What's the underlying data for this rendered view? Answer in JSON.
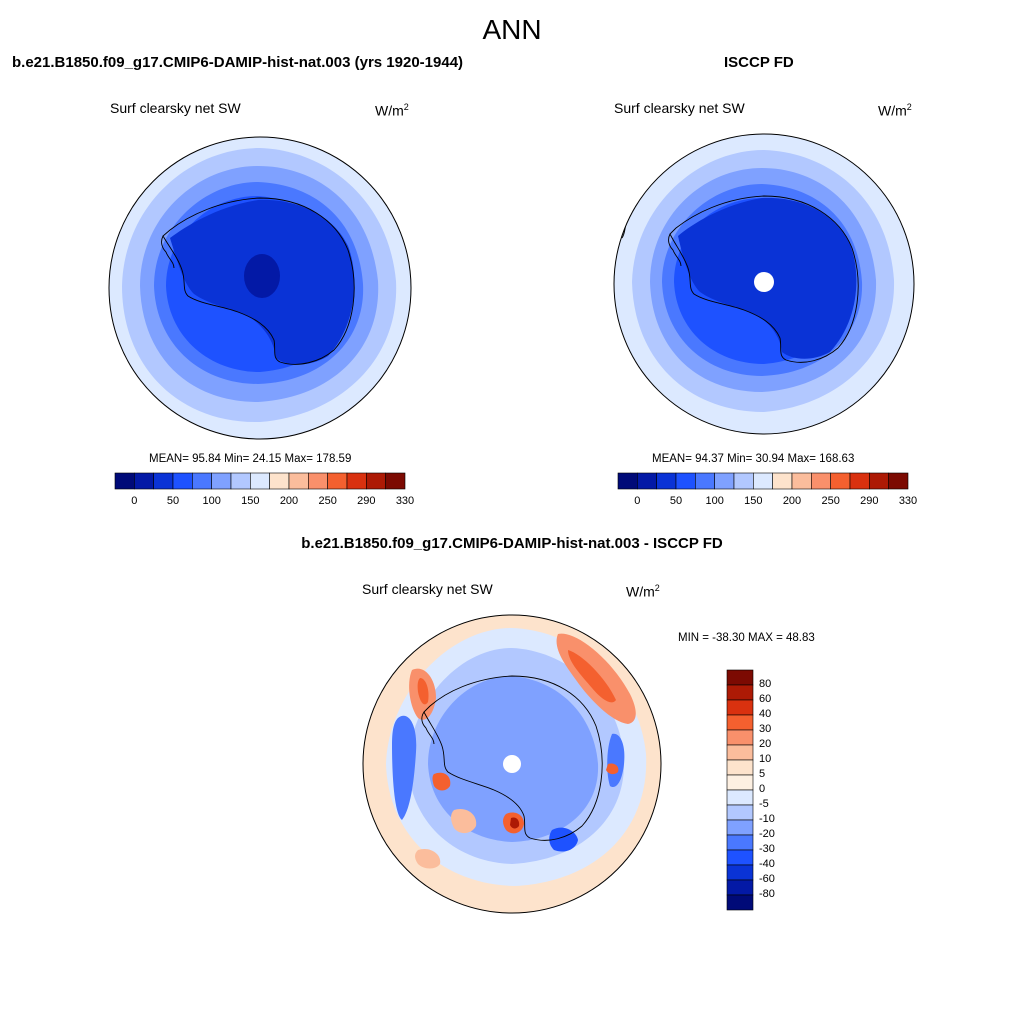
{
  "figure": {
    "title": "ANN"
  },
  "colors": {
    "cb_sequential": [
      "#000a78",
      "#0319a6",
      "#0a33d6",
      "#1e52ff",
      "#4a78ff",
      "#7fa1ff",
      "#b2c8ff",
      "#dce9ff",
      "#fde3cc",
      "#fbbd9c",
      "#f9906b",
      "#f4602f",
      "#d9310f",
      "#ad1a05",
      "#7c0a02"
    ],
    "cb_diff": [
      "#000a78",
      "#0319a6",
      "#0a33d6",
      "#1e52ff",
      "#4a78ff",
      "#7fa1ff",
      "#b2c8ff",
      "#dce9ff",
      "#fdf0e2",
      "#fde3cc",
      "#fbbd9c",
      "#f9906b",
      "#f4602f",
      "#d9310f",
      "#ad1a05",
      "#7c0a02"
    ]
  },
  "chart_data": [
    {
      "type": "heatmap",
      "projection": "south-polar-stereographic",
      "panel_title": "b.e21.B1850.f09_g17.CMIP6-DAMIP-hist-nat.003 (yrs 1920-1944)",
      "variable": "Surf clearsky net SW",
      "units_base": "W/m",
      "units_exp": "2",
      "stats_text": "MEAN=  95.84  Min=  24.15  Max= 178.59",
      "mean": 95.84,
      "min": 24.15,
      "max": 178.59,
      "colorbar": {
        "orientation": "horizontal",
        "levels": [
          0,
          50,
          100,
          150,
          200,
          250,
          290,
          330
        ],
        "labels": [
          "0",
          "50",
          "100",
          "150",
          "200",
          "250",
          "290",
          "330"
        ]
      }
    },
    {
      "type": "heatmap",
      "projection": "south-polar-stereographic",
      "panel_title": "ISCCP FD",
      "variable": "Surf clearsky net SW",
      "units_base": "W/m",
      "units_exp": "2",
      "stats_text": "MEAN=  94.37  Min=  30.94  Max= 168.63",
      "mean": 94.37,
      "min": 30.94,
      "max": 168.63,
      "colorbar": {
        "orientation": "horizontal",
        "levels": [
          0,
          50,
          100,
          150,
          200,
          250,
          290,
          330
        ],
        "labels": [
          "0",
          "50",
          "100",
          "150",
          "200",
          "250",
          "290",
          "330"
        ]
      }
    },
    {
      "type": "heatmap",
      "projection": "south-polar-stereographic",
      "panel_title": "b.e21.B1850.f09_g17.CMIP6-DAMIP-hist-nat.003 - ISCCP FD",
      "variable": "Surf clearsky net SW",
      "units_base": "W/m",
      "units_exp": "2",
      "stats_text": "MIN = -38.30 MAX =  48.83",
      "min": -38.3,
      "max": 48.83,
      "colorbar": {
        "orientation": "vertical",
        "levels": [
          80,
          60,
          40,
          30,
          20,
          10,
          5,
          0,
          -5,
          -10,
          -20,
          -30,
          -40,
          -60,
          -80
        ],
        "labels": [
          "80",
          "60",
          "40",
          "30",
          "20",
          "10",
          "5",
          "0",
          "-5",
          "-10",
          "-20",
          "-30",
          "-40",
          "-60",
          "-80"
        ]
      }
    }
  ]
}
